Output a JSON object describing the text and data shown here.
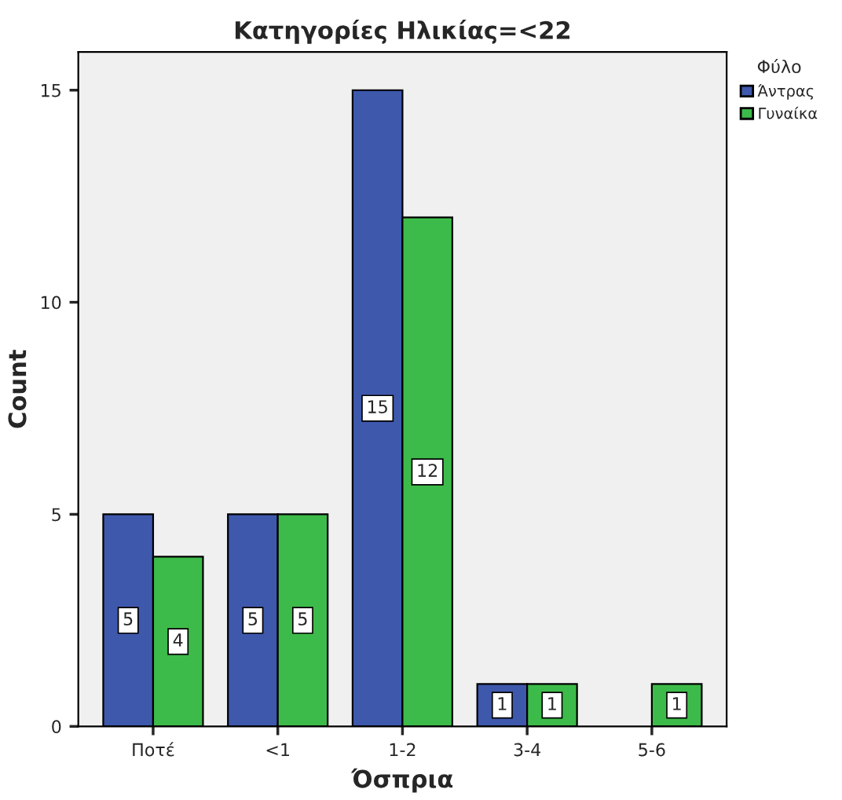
{
  "chart_data": {
    "type": "bar",
    "title": "Κατηγορίες Ηλικίας=<22",
    "xlabel": "Όσπρια",
    "ylabel": "Count",
    "legend_title": "Φύλο",
    "categories": [
      "Ποτέ",
      "<1",
      "1-2",
      "3-4",
      "5-6"
    ],
    "series": [
      {
        "name": "Άντρας",
        "color": "#3e58ac",
        "values": [
          5,
          5,
          15,
          1,
          null
        ]
      },
      {
        "name": "Γυναίκα",
        "color": "#3dbb4a",
        "values": [
          4,
          5,
          12,
          1,
          1
        ]
      }
    ],
    "ylim": [
      0,
      15.9
    ],
    "yticks": [
      0,
      5,
      10,
      15
    ],
    "data_labels": true,
    "legend": "right",
    "grid": false
  }
}
